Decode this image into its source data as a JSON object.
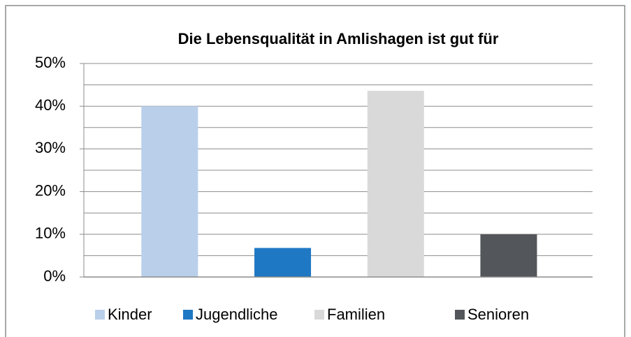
{
  "chart_data": {
    "type": "bar",
    "title": "Die Lebensqualität in Amlishagen ist gut für",
    "categories": [
      "Kinder",
      "Jugendliche",
      "Familien",
      "Senioren"
    ],
    "values": [
      40,
      6.8,
      43.6,
      10
    ],
    "colors": [
      "#b9cfea",
      "#1f78c4",
      "#d9d9d9",
      "#53565a"
    ],
    "ylim": [
      0,
      50
    ],
    "yticks": [
      {
        "value": 0,
        "label": "0%"
      },
      {
        "value": 10,
        "label": "10%"
      },
      {
        "value": 20,
        "label": "20%"
      },
      {
        "value": 30,
        "label": "30%"
      },
      {
        "value": 40,
        "label": "40%"
      },
      {
        "value": 50,
        "label": "50%"
      }
    ],
    "minor_yticks": [
      5,
      15,
      25,
      35,
      45
    ],
    "grid": true,
    "legend": "bottom"
  }
}
